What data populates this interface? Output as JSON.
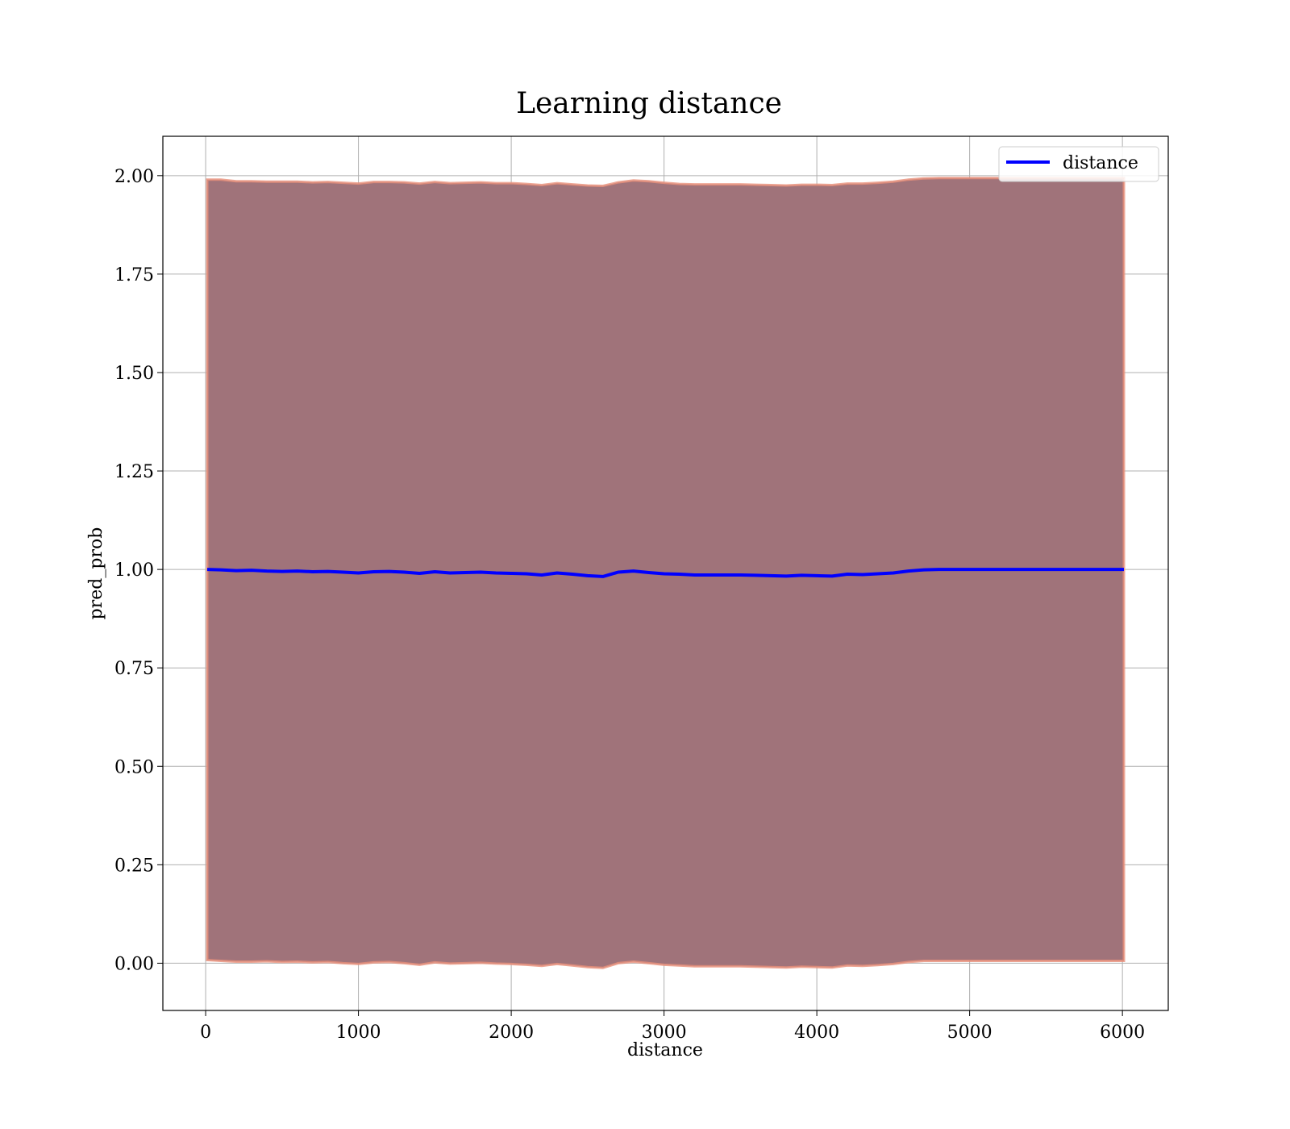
{
  "chart_data": {
    "type": "line",
    "title": "Learning distance",
    "xlabel": "distance",
    "ylabel": "pred_prob",
    "xlim": [
      -280,
      6300
    ],
    "ylim": [
      -0.12,
      2.1
    ],
    "xticks": [
      0,
      1000,
      2000,
      3000,
      4000,
      5000,
      6000
    ],
    "yticks": [
      0.0,
      0.25,
      0.5,
      0.75,
      1.0,
      1.25,
      1.5,
      1.75,
      2.0
    ],
    "xtick_labels": [
      "0",
      "1000",
      "2000",
      "3000",
      "4000",
      "5000",
      "6000"
    ],
    "ytick_labels": [
      "0.00",
      "0.25",
      "0.50",
      "0.75",
      "1.00",
      "1.25",
      "1.50",
      "1.75",
      "2.00"
    ],
    "grid": true,
    "legend_position": "top-right",
    "series": [
      {
        "name": "distance",
        "color": "#0000ff",
        "x": [
          10,
          100,
          200,
          300,
          400,
          500,
          600,
          700,
          800,
          900,
          1000,
          1100,
          1200,
          1300,
          1400,
          1500,
          1600,
          1700,
          1800,
          1900,
          2000,
          2100,
          2200,
          2300,
          2400,
          2500,
          2600,
          2700,
          2800,
          2900,
          3000,
          3100,
          3200,
          3300,
          3400,
          3500,
          3600,
          3700,
          3800,
          3900,
          4000,
          4100,
          4200,
          4300,
          4400,
          4500,
          4600,
          4700,
          4800,
          5000,
          5200,
          5400,
          5600,
          5800,
          6010
        ],
        "y": [
          1.0,
          0.999,
          0.997,
          0.998,
          0.996,
          0.995,
          0.996,
          0.994,
          0.995,
          0.993,
          0.991,
          0.994,
          0.995,
          0.993,
          0.99,
          0.994,
          0.991,
          0.992,
          0.993,
          0.991,
          0.99,
          0.989,
          0.986,
          0.991,
          0.988,
          0.984,
          0.982,
          0.993,
          0.996,
          0.992,
          0.989,
          0.988,
          0.986,
          0.986,
          0.986,
          0.986,
          0.985,
          0.984,
          0.983,
          0.985,
          0.984,
          0.983,
          0.988,
          0.987,
          0.989,
          0.991,
          0.996,
          0.999,
          1.0,
          1.0,
          1.0,
          1.0,
          1.0,
          1.0,
          1.0
        ],
        "band": {
          "color": "#a0737a",
          "edge_color": "#e8907a",
          "upper": [
            1.99,
            1.99,
            1.986,
            1.986,
            1.985,
            1.985,
            1.985,
            1.983,
            1.984,
            1.982,
            1.98,
            1.984,
            1.984,
            1.983,
            1.98,
            1.984,
            1.981,
            1.982,
            1.983,
            1.981,
            1.981,
            1.979,
            1.976,
            1.981,
            1.978,
            1.975,
            1.974,
            1.983,
            1.988,
            1.986,
            1.982,
            1.979,
            1.978,
            1.978,
            1.978,
            1.978,
            1.977,
            1.976,
            1.975,
            1.977,
            1.977,
            1.976,
            1.98,
            1.98,
            1.982,
            1.985,
            1.99,
            1.993,
            1.994,
            1.994,
            1.994,
            1.994,
            1.994,
            1.994,
            1.994
          ],
          "lower": [
            0.008,
            0.006,
            0.004,
            0.004,
            0.005,
            0.003,
            0.004,
            0.002,
            0.003,
            0.0,
            -0.002,
            0.002,
            0.003,
            0.0,
            -0.004,
            0.002,
            -0.001,
            0.0,
            0.001,
            -0.001,
            -0.002,
            -0.004,
            -0.007,
            -0.002,
            -0.006,
            -0.01,
            -0.012,
            0.0,
            0.004,
            0.0,
            -0.004,
            -0.006,
            -0.008,
            -0.008,
            -0.008,
            -0.008,
            -0.009,
            -0.01,
            -0.011,
            -0.009,
            -0.01,
            -0.011,
            -0.006,
            -0.007,
            -0.005,
            -0.002,
            0.003,
            0.006,
            0.006,
            0.006,
            0.006,
            0.006,
            0.006,
            0.006,
            0.006
          ]
        }
      }
    ]
  }
}
